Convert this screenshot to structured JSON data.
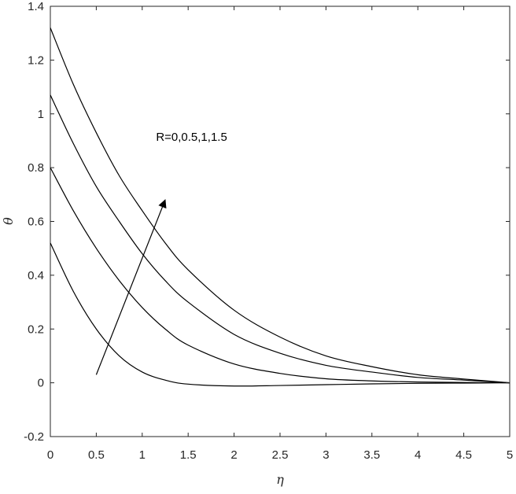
{
  "chart_data": {
    "type": "line",
    "title": "",
    "xlabel": "η",
    "ylabel": "θ",
    "xlim": [
      0,
      5
    ],
    "ylim": [
      -0.2,
      1.4
    ],
    "xticks": [
      "0",
      "0.5",
      "1",
      "1.5",
      "2",
      "2.5",
      "3",
      "3.5",
      "4",
      "4.5",
      "5"
    ],
    "yticks": [
      "-0.2",
      "0",
      "0.2",
      "0.4",
      "0.6",
      "0.8",
      "1",
      "1.2",
      "1.4"
    ],
    "grid": false,
    "legend": "none",
    "line_color": "#000000",
    "series": [
      {
        "values": [
          [
            0,
            0.52
          ],
          [
            0.25,
            0.34
          ],
          [
            0.5,
            0.2
          ],
          [
            0.75,
            0.1
          ],
          [
            1,
            0.04
          ],
          [
            1.25,
            0.01
          ],
          [
            1.5,
            -0.005
          ],
          [
            2,
            -0.012
          ],
          [
            2.5,
            -0.01
          ],
          [
            3,
            -0.007
          ],
          [
            3.5,
            -0.004
          ],
          [
            4,
            -0.002
          ],
          [
            4.5,
            -0.001
          ],
          [
            5,
            0
          ]
        ]
      },
      {
        "values": [
          [
            0,
            0.8
          ],
          [
            0.25,
            0.64
          ],
          [
            0.5,
            0.5
          ],
          [
            0.75,
            0.38
          ],
          [
            1,
            0.28
          ],
          [
            1.25,
            0.2
          ],
          [
            1.5,
            0.14
          ],
          [
            2,
            0.07
          ],
          [
            2.5,
            0.035
          ],
          [
            3,
            0.015
          ],
          [
            3.5,
            0.007
          ],
          [
            4,
            0.003
          ],
          [
            4.5,
            0.001
          ],
          [
            5,
            0
          ]
        ]
      },
      {
        "values": [
          [
            0,
            1.07
          ],
          [
            0.25,
            0.89
          ],
          [
            0.5,
            0.73
          ],
          [
            0.75,
            0.6
          ],
          [
            1,
            0.48
          ],
          [
            1.25,
            0.38
          ],
          [
            1.5,
            0.3
          ],
          [
            2,
            0.18
          ],
          [
            2.5,
            0.11
          ],
          [
            3,
            0.065
          ],
          [
            3.5,
            0.04
          ],
          [
            4,
            0.02
          ],
          [
            4.5,
            0.01
          ],
          [
            5,
            0
          ]
        ]
      },
      {
        "values": [
          [
            0,
            1.32
          ],
          [
            0.25,
            1.11
          ],
          [
            0.5,
            0.93
          ],
          [
            0.75,
            0.77
          ],
          [
            1,
            0.64
          ],
          [
            1.25,
            0.52
          ],
          [
            1.5,
            0.42
          ],
          [
            2,
            0.27
          ],
          [
            2.5,
            0.17
          ],
          [
            3,
            0.1
          ],
          [
            3.5,
            0.06
          ],
          [
            4,
            0.03
          ],
          [
            4.5,
            0.014
          ],
          [
            5,
            0
          ]
        ]
      }
    ],
    "annotations": [
      {
        "text": "R=0,0.5,1,1.5",
        "at": [
          1.15,
          0.9
        ]
      },
      {
        "arrow_from": [
          0.5,
          0.03
        ],
        "arrow_to": [
          1.25,
          0.68
        ]
      }
    ]
  }
}
